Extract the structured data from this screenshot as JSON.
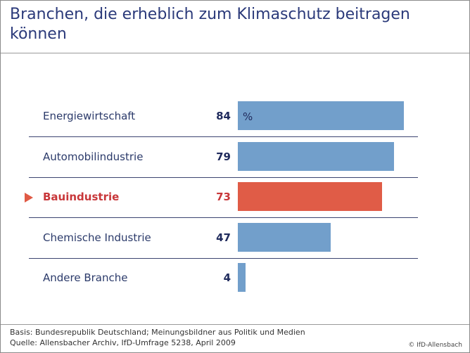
{
  "chart_data": {
    "type": "bar",
    "orientation": "horizontal",
    "title": "Branchen, die erheblich zum Klimaschutz beitragen können",
    "unit": "%",
    "categories": [
      "Energiewirtschaft",
      "Automobilindustrie",
      "Bauindustrie",
      "Chemische Industrie",
      "Andere Branche"
    ],
    "values": [
      84,
      79,
      73,
      47,
      4
    ],
    "highlighted": "Bauindustrie",
    "xlim": [
      0,
      100
    ],
    "grid": false,
    "colors": {
      "bar": "#729fcb",
      "highlight": "#e05c47",
      "text": "#2b3a6a",
      "highlight_text": "#c8373a"
    }
  },
  "footer": {
    "basis": "Basis: Bundesrepublik Deutschland; Meinungsbildner aus Politik und Medien",
    "source": "Quelle: Allensbacher Archiv, IfD-Umfrage 5238, April 2009",
    "copyright": "© IfD-Allensbach"
  },
  "icons": {
    "highlight_marker": "triangle-right-icon"
  }
}
